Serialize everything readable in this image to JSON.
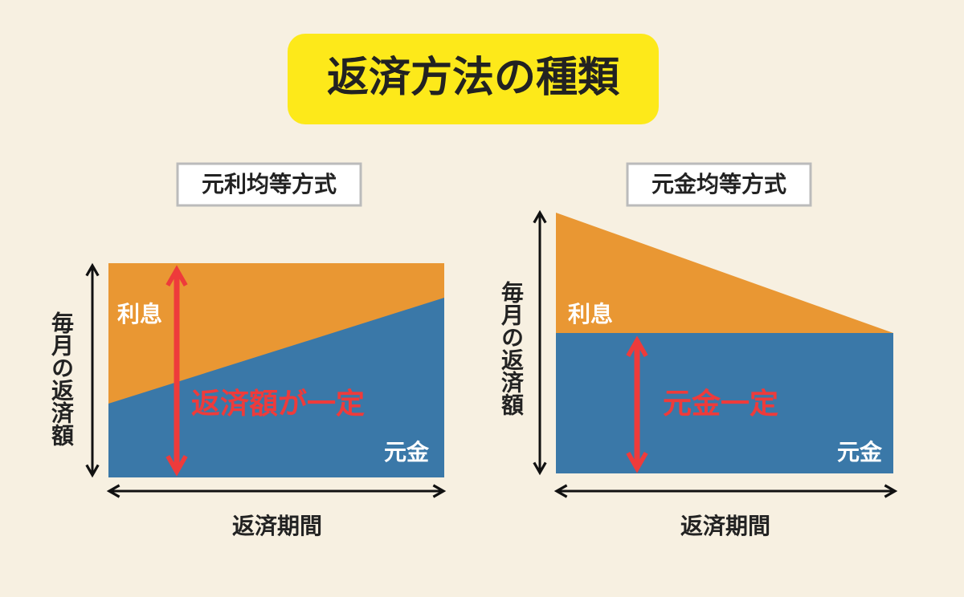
{
  "title": "返済方法の種類",
  "panels": [
    {
      "label": "元利均等方式",
      "y_axis_label": "毎月の返済額",
      "x_axis_label": "返済期間",
      "upper_area_label": "利息",
      "lower_area_label": "元金",
      "emphasis": "返済額が一定"
    },
    {
      "label": "元金均等方式",
      "y_axis_label": "毎月の返済額",
      "x_axis_label": "返済期間",
      "upper_area_label": "利息",
      "lower_area_label": "元金",
      "emphasis": "元金一定"
    }
  ]
}
